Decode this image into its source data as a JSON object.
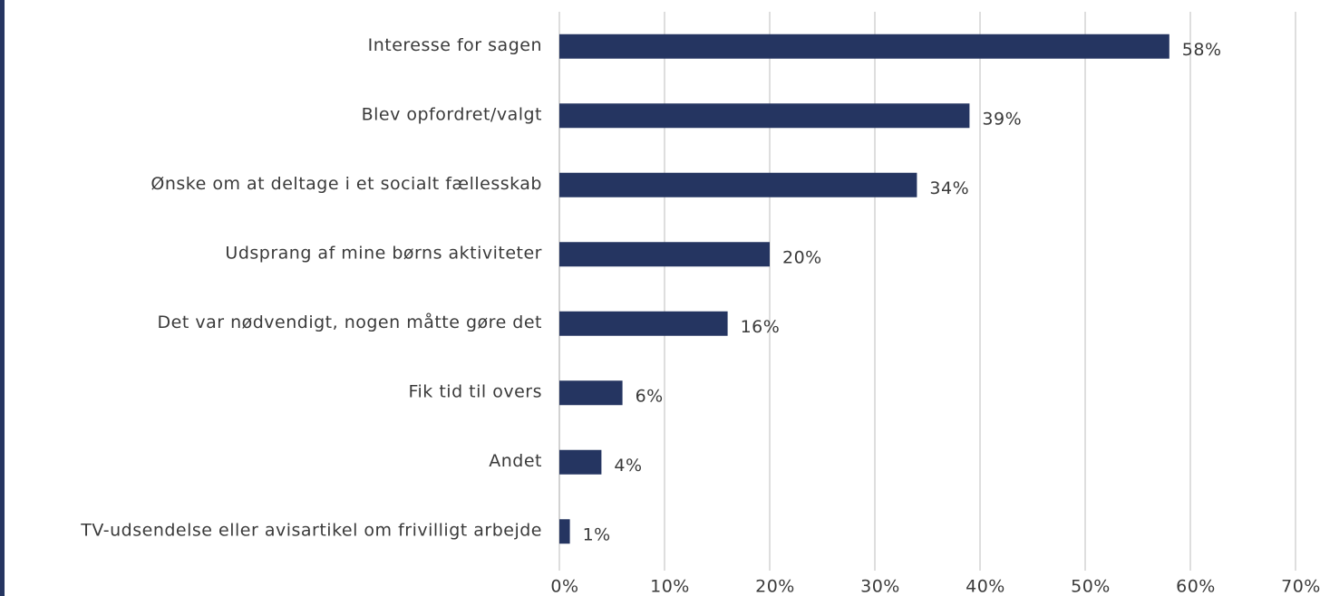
{
  "chart_data": {
    "type": "hbar",
    "categories": [
      "Interesse for sagen",
      "Blev opfordret/valgt",
      "Ønske om at deltage i et socialt fællesskab",
      "Udsprang af mine børns aktiviteter",
      "Det var nødvendigt, nogen måtte gøre det",
      "Fik tid til overs",
      "Andet",
      "TV-udsendelse eller avisartikel om frivilligt arbejde"
    ],
    "values": [
      58,
      39,
      34,
      20,
      16,
      6,
      4,
      1
    ],
    "value_labels": [
      "58%",
      "39%",
      "34%",
      "20%",
      "16%",
      "6%",
      "4%",
      "1%"
    ],
    "color": "#253561",
    "xlim": [
      0,
      70
    ],
    "xticks": [
      {
        "value": 0,
        "label": "0%"
      },
      {
        "value": 10,
        "label": "10%"
      },
      {
        "value": 20,
        "label": "20%"
      },
      {
        "value": 30,
        "label": "30%"
      },
      {
        "value": 40,
        "label": "40%"
      },
      {
        "value": 50,
        "label": "50%"
      },
      {
        "value": 60,
        "label": "60%"
      },
      {
        "value": 70,
        "label": "70%"
      }
    ],
    "grid": true
  }
}
